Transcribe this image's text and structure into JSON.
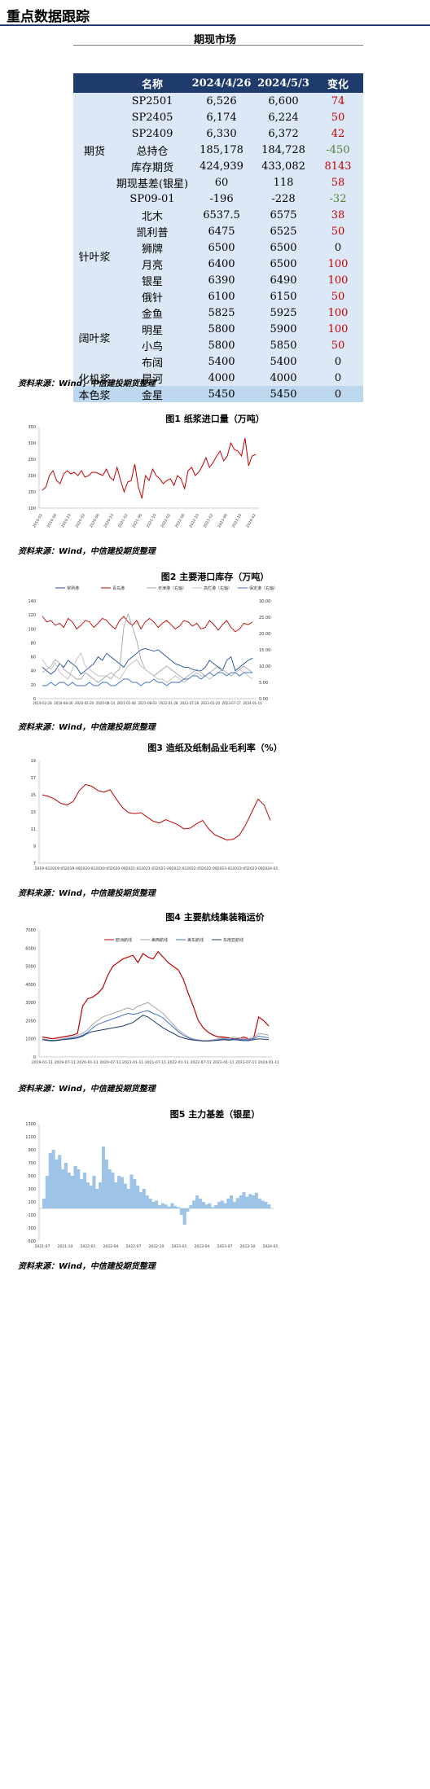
{
  "header": {
    "title": "重点数据跟踪"
  },
  "futures": {
    "section_title": "期现市场",
    "columns": [
      "名称",
      "2024/4/26",
      "2024/5/3",
      "变化"
    ],
    "rows": [
      {
        "group": "期货",
        "name": "SP2501",
        "v1": "6,526",
        "v2": "6,600",
        "chg": "74",
        "dir": "pos"
      },
      {
        "group": "",
        "name": "SP2405",
        "v1": "6,174",
        "v2": "6,224",
        "chg": "50",
        "dir": "pos"
      },
      {
        "group": "",
        "name": "SP2409",
        "v1": "6,330",
        "v2": "6,372",
        "chg": "42",
        "dir": "pos"
      },
      {
        "group": "",
        "name": "总持仓",
        "v1": "185,178",
        "v2": "184,728",
        "chg": "-450",
        "dir": "neg"
      },
      {
        "group": "",
        "name": "库存期货",
        "v1": "424,939",
        "v2": "433,082",
        "chg": "8143",
        "dir": "pos"
      },
      {
        "group": "",
        "name": "期现基差(银星)",
        "v1": "60",
        "v2": "118",
        "chg": "58",
        "dir": "pos"
      },
      {
        "group": "",
        "name": "SP09-01",
        "v1": "-196",
        "v2": "-228",
        "chg": "-32",
        "dir": "neg"
      },
      {
        "group": "针叶浆",
        "name": "北木",
        "v1": "6537.5",
        "v2": "6575",
        "chg": "38",
        "dir": "pos"
      },
      {
        "group": "",
        "name": "凯利普",
        "v1": "6475",
        "v2": "6525",
        "chg": "50",
        "dir": "pos"
      },
      {
        "group": "",
        "name": "狮牌",
        "v1": "6500",
        "v2": "6500",
        "chg": "0",
        "dir": "zero"
      },
      {
        "group": "",
        "name": "月亮",
        "v1": "6400",
        "v2": "6500",
        "chg": "100",
        "dir": "pos"
      },
      {
        "group": "",
        "name": "银星",
        "v1": "6390",
        "v2": "6490",
        "chg": "100",
        "dir": "pos"
      },
      {
        "group": "",
        "name": "俄针",
        "v1": "6100",
        "v2": "6150",
        "chg": "50",
        "dir": "pos"
      },
      {
        "group": "阔叶浆",
        "name": "金鱼",
        "v1": "5825",
        "v2": "5925",
        "chg": "100",
        "dir": "pos"
      },
      {
        "group": "",
        "name": "明星",
        "v1": "5800",
        "v2": "5900",
        "chg": "100",
        "dir": "pos"
      },
      {
        "group": "",
        "name": "小鸟",
        "v1": "5800",
        "v2": "5850",
        "chg": "50",
        "dir": "pos"
      },
      {
        "group": "",
        "name": "布阔",
        "v1": "5400",
        "v2": "5400",
        "chg": "0",
        "dir": "zero"
      },
      {
        "group": "化机浆",
        "name": "昆河",
        "v1": "4000",
        "v2": "4000",
        "chg": "0",
        "dir": "zero"
      },
      {
        "group": "本色浆",
        "name": "金星",
        "v1": "5450",
        "v2": "5450",
        "chg": "0",
        "dir": "zero"
      }
    ],
    "source": "资料来源：Wind，中信建投期货整理"
  },
  "colors": {
    "header_bg": "#1f3b6b",
    "futures_bg": "#dce8f5",
    "needle_bg": "#bdd7ee",
    "red": "#c00000",
    "green": "#548235"
  },
  "chart_data": [
    {
      "type": "line",
      "title": "图1 纸浆进口量（万吨）",
      "source": "资料来源：Wind，中信建投期货整理",
      "yticks": [
        "350",
        "300",
        "250",
        "200",
        "150",
        "100"
      ],
      "ylim": [
        100,
        350
      ],
      "xticks": [
        "2019-02",
        "2019-06",
        "2019-10",
        "2020-02",
        "2020-06",
        "2020-10",
        "2021-02",
        "2021-06",
        "2021-10",
        "2022-02",
        "2022-06",
        "2022-10",
        "2023-02",
        "2023-06",
        "2023-10",
        "2024-02"
      ],
      "series": [
        {
          "values": [
            155,
            165,
            200,
            215,
            185,
            175,
            205,
            215,
            205,
            210,
            200,
            215,
            195,
            200,
            210,
            210,
            205,
            200,
            220,
            195,
            185,
            225,
            185,
            150,
            180,
            185,
            235,
            165,
            130,
            200,
            185,
            220,
            200,
            190,
            175,
            185,
            190,
            170,
            200,
            190,
            160,
            215,
            225,
            200,
            210,
            230,
            255,
            225,
            240,
            260,
            275,
            245,
            260,
            300,
            280,
            275,
            260,
            315,
            230,
            260,
            265
          ]
        }
      ]
    },
    {
      "type": "line",
      "title": "图2 主要港口库存（万吨）",
      "source": "资料来源：Wind，中信建投期货整理",
      "legend": [
        "常熟港",
        "青岛港",
        "天津港（右轴）",
        "高栏港（右轴）",
        "保定港（右轴）"
      ],
      "yticks_left": [
        "140",
        "120",
        "100",
        "80",
        "60",
        "40",
        "20",
        "0"
      ],
      "yticks_right": [
        "30.00",
        "25.00",
        "20.00",
        "15.00",
        "10.00",
        "5.00",
        "0.00"
      ],
      "ylim_left": [
        0,
        140
      ],
      "ylim_right": [
        0,
        30
      ],
      "xticks": [
        "2019-02-28",
        "2019-08-26",
        "2020-02-20",
        "2020-08-14",
        "2021-02-08",
        "2021-08-03",
        "2022-01-28",
        "2022-07-26",
        "2023-01-20",
        "2023-07-17",
        "2024-01-10"
      ],
      "series": [
        {
          "name": "常熟港",
          "axis": "left",
          "values": [
            45,
            40,
            35,
            40,
            50,
            45,
            55,
            50,
            45,
            35,
            40,
            45,
            50,
            60,
            55,
            65,
            60,
            55,
            50,
            45,
            55,
            60,
            65,
            70,
            72,
            70,
            68,
            70,
            65,
            60,
            55,
            50,
            48,
            45,
            45,
            42,
            40,
            40,
            45,
            55,
            50,
            45,
            40,
            55,
            60,
            40,
            45,
            50,
            55,
            58
          ]
        },
        {
          "name": "青岛港",
          "axis": "left",
          "values": [
            118,
            110,
            112,
            105,
            108,
            102,
            115,
            110,
            100,
            105,
            112,
            110,
            102,
            108,
            115,
            112,
            105,
            100,
            112,
            118,
            110,
            105,
            112,
            100,
            110,
            115,
            110,
            102,
            108,
            112,
            106,
            100,
            104,
            112,
            110,
            104,
            108,
            100,
            102,
            112,
            106,
            98,
            106,
            112,
            102,
            96,
            100,
            108,
            106,
            110
          ]
        },
        {
          "name": "天津港（右轴）",
          "axis": "right",
          "values": [
            8,
            9,
            10,
            12,
            11,
            9,
            8,
            7,
            6,
            6,
            8,
            7,
            6,
            5,
            6,
            7,
            6,
            8,
            9,
            22,
            26,
            22,
            18,
            12,
            9,
            8,
            7,
            8,
            9,
            10,
            9,
            8,
            7,
            6,
            7,
            8,
            9,
            8,
            7,
            8,
            9,
            10,
            9,
            8,
            7,
            8,
            9,
            10,
            9,
            8
          ]
        },
        {
          "name": "高栏港（右轴）",
          "axis": "right",
          "values": [
            12,
            10,
            9,
            11,
            8,
            7,
            6,
            9,
            12,
            14,
            10,
            9,
            8,
            7,
            7,
            7,
            8,
            7,
            6,
            8,
            10,
            11,
            12,
            10,
            9,
            8,
            7,
            6,
            6,
            5,
            6,
            7,
            6,
            5,
            6,
            7,
            8,
            7,
            7,
            6,
            7,
            8,
            9,
            8,
            7,
            8,
            9,
            8,
            7,
            6
          ]
        },
        {
          "name": "保定港（右轴）",
          "axis": "right",
          "values": [
            4,
            4,
            5,
            4,
            5,
            5,
            4,
            5,
            4,
            4,
            4,
            5,
            4,
            4,
            5,
            5,
            4,
            4,
            5,
            6,
            6,
            5,
            5,
            4,
            5,
            5,
            6,
            5,
            5,
            4,
            5,
            5,
            5,
            6,
            6,
            7,
            7,
            6,
            7,
            8,
            7,
            8,
            8,
            7,
            8,
            8,
            7,
            8,
            8,
            8
          ]
        }
      ]
    },
    {
      "type": "line",
      "title": "图3 造纸及纸制品业毛利率（%）",
      "source": "资料来源：Wind，中信建投期货整理",
      "yticks": [
        "19",
        "17",
        "15",
        "13",
        "11",
        "9",
        "7"
      ],
      "ylim": [
        7,
        19
      ],
      "xticks": [
        "2019-01",
        "2019-05",
        "2019-09",
        "2020-01",
        "2020-05",
        "2020-09",
        "2021-01",
        "2021-05",
        "2021-09",
        "2022-01",
        "2022-05",
        "2022-09",
        "2023-01",
        "2023-05",
        "2023-09",
        "2024-01"
      ],
      "series": [
        {
          "values": [
            15.0,
            14.8,
            14.5,
            14.0,
            13.8,
            14.2,
            15.5,
            16.2,
            16.0,
            15.5,
            15.3,
            15.6,
            14.5,
            13.5,
            12.9,
            12.8,
            12.9,
            12.4,
            11.9,
            11.7,
            12.1,
            11.8,
            11.5,
            11.0,
            11.1,
            11.6,
            12.0,
            11.0,
            10.3,
            10.0,
            9.7,
            9.8,
            10.3,
            11.5,
            13.0,
            14.5,
            13.8,
            12.0
          ]
        }
      ]
    },
    {
      "type": "line",
      "title": "图4 主要航线集装箱运价",
      "source": "资料来源：Wind，中信建投期货整理",
      "legend": [
        "欧洲航线",
        "美西航线",
        "美东航线",
        "东南亚航线"
      ],
      "yticks": [
        "7000",
        "6000",
        "5000",
        "4000",
        "3000",
        "2000",
        "1000",
        "0"
      ],
      "ylim": [
        0,
        7000
      ],
      "xticks": [
        "2019-01-11",
        "2019-07-11",
        "2020-01-11",
        "2020-07-11",
        "2021-01-11",
        "2021-07-11",
        "2022-01-11",
        "2022-07-11",
        "2023-01-11",
        "2023-07-11",
        "2024-01-11"
      ],
      "series": [
        {
          "name": "欧洲航线",
          "values": [
            1100,
            1050,
            1000,
            1050,
            1100,
            1150,
            1200,
            1300,
            2800,
            3200,
            3300,
            3500,
            3800,
            4500,
            5000,
            5200,
            5400,
            5500,
            5600,
            5200,
            5700,
            5500,
            5400,
            5800,
            5500,
            5200,
            5000,
            4800,
            4300,
            3500,
            2800,
            2000,
            1600,
            1350,
            1200,
            1100,
            1100,
            1050,
            1000,
            1000,
            1100,
            1000,
            1050,
            2200,
            2000,
            1700
          ]
        },
        {
          "name": "美西航线",
          "values": [
            1000,
            950,
            900,
            950,
            1000,
            1050,
            1100,
            1200,
            1300,
            1500,
            1800,
            2000,
            2200,
            2300,
            2400,
            2500,
            2600,
            2700,
            2600,
            2800,
            2900,
            3000,
            2800,
            2600,
            2400,
            2100,
            1800,
            1500,
            1300,
            1100,
            1000,
            950,
            900,
            900,
            950,
            1000,
            1050,
            1000,
            1100,
            1050,
            1000,
            1000,
            1050,
            1300,
            1250,
            1200
          ]
        },
        {
          "name": "美东航线",
          "values": [
            950,
            900,
            880,
            900,
            950,
            1000,
            1050,
            1100,
            1200,
            1350,
            1600,
            1800,
            1900,
            2000,
            2100,
            2200,
            2300,
            2400,
            2350,
            2400,
            2500,
            2550,
            2400,
            2300,
            2150,
            1900,
            1650,
            1400,
            1200,
            1050,
            950,
            900,
            880,
            880,
            900,
            950,
            1000,
            950,
            1000,
            980,
            950,
            950,
            1000,
            1150,
            1100,
            1050
          ]
        },
        {
          "name": "东南亚航线",
          "values": [
            950,
            920,
            900,
            920,
            950,
            980,
            1000,
            1050,
            1150,
            1300,
            1400,
            1450,
            1500,
            1550,
            1600,
            1650,
            1700,
            1800,
            1900,
            2100,
            2300,
            2200,
            2000,
            1800,
            1600,
            1450,
            1300,
            1150,
            1050,
            980,
            930,
            900,
            880,
            880,
            900,
            920,
            950,
            920,
            950,
            930,
            900,
            900,
            950,
            1000,
            980,
            950
          ]
        }
      ]
    },
    {
      "type": "area",
      "title": "图5 主力基差（银星）",
      "source": "资料来源：Wind，中信建投期货整理",
      "yticks": [
        "1300",
        "1100",
        "900",
        "700",
        "500",
        "300",
        "100",
        "-100",
        "-300",
        "-500"
      ],
      "ylim": [
        -500,
        1300
      ],
      "xticks": [
        "2021-07",
        "2021-10",
        "2022-01",
        "2022-04",
        "2022-07",
        "2022-10",
        "2023-01",
        "2023-04",
        "2023-07",
        "2023-10",
        "2024-01"
      ],
      "series": [
        {
          "values": [
            150,
            500,
            850,
            900,
            750,
            820,
            600,
            700,
            550,
            500,
            650,
            600,
            450,
            550,
            400,
            350,
            500,
            300,
            400,
            950,
            750,
            600,
            550,
            400,
            500,
            480,
            380,
            300,
            520,
            450,
            350,
            250,
            300,
            200,
            150,
            100,
            120,
            50,
            80,
            60,
            30,
            80,
            40,
            20,
            -100,
            -250,
            -50,
            50,
            120,
            200,
            150,
            100,
            60,
            80,
            20,
            50,
            100,
            120,
            80,
            150,
            200,
            100,
            160,
            200,
            250,
            180,
            220,
            200,
            240,
            150,
            120,
            100,
            60
          ]
        }
      ]
    }
  ]
}
